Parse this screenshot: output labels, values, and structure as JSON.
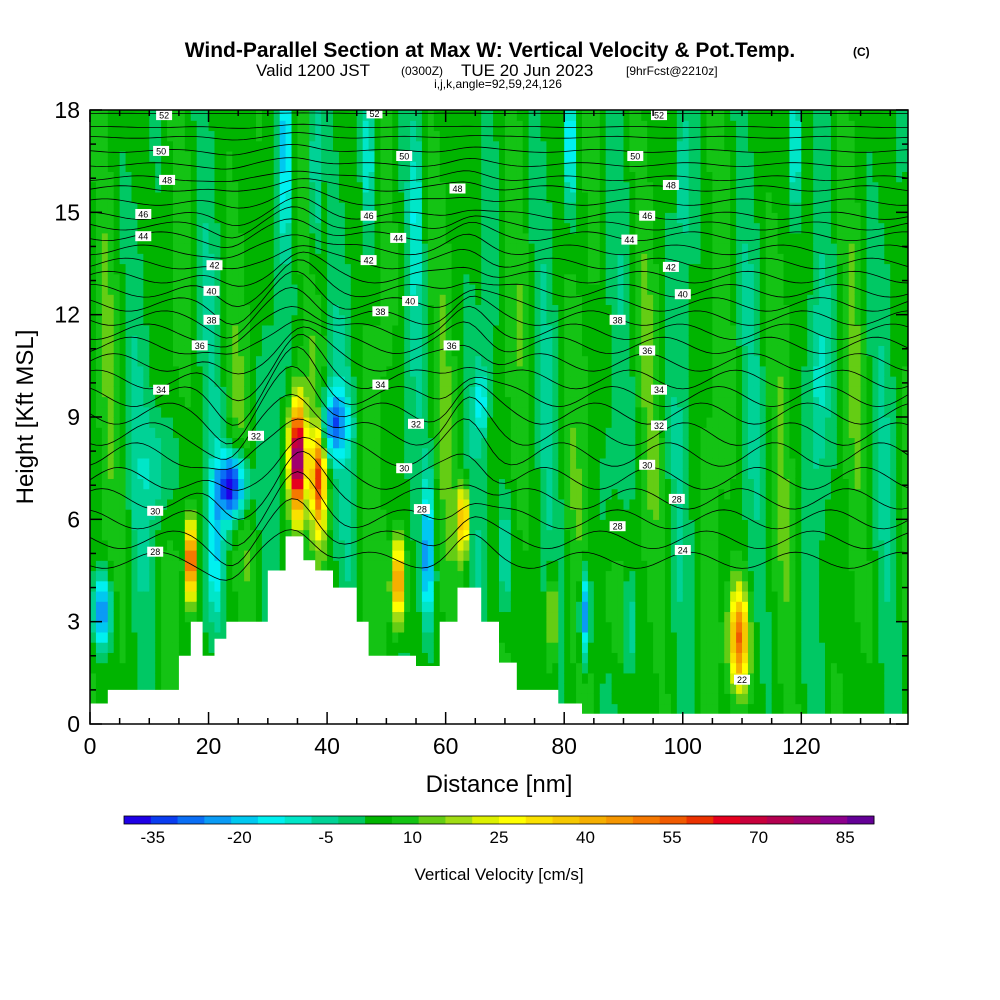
{
  "title": {
    "main": "Wind-Parallel Section at Max W: Vertical Velocity & Pot.Temp.",
    "copyright": "(C)",
    "valid_prefix": "Valid 1200 JST",
    "valid_utc": "(0300Z)",
    "valid_date": "TUE 20 Jun 2023",
    "forecast": "[9hrFcst@2210z]",
    "indices": "i,j,k,angle=92,59,24,126"
  },
  "chart_data": {
    "type": "heatmap",
    "xlabel": "Distance [nm]",
    "ylabel": "Height [Kft MSL]",
    "xlim": [
      0,
      138
    ],
    "ylim": [
      0,
      18
    ],
    "xticks": [
      0,
      20,
      40,
      60,
      80,
      100,
      120
    ],
    "yticks": [
      0,
      3,
      6,
      9,
      12,
      15,
      18
    ],
    "colorbar": {
      "label": "Vertical Velocity [cm/s]",
      "range": [
        -40,
        90
      ],
      "ticks": [
        -35,
        -20,
        -5,
        10,
        25,
        40,
        55,
        70,
        85
      ],
      "colors": [
        "#1e00e6",
        "#0a3cf0",
        "#0a6ef5",
        "#0a9bf5",
        "#00c8f0",
        "#00f0f0",
        "#00e6c8",
        "#00d296",
        "#00c864",
        "#00b400",
        "#14c314",
        "#64cd14",
        "#a0dc14",
        "#dcf000",
        "#ffff00",
        "#fae100",
        "#f5c800",
        "#f5af00",
        "#f59600",
        "#f57800",
        "#f05a00",
        "#eb3200",
        "#e6001e",
        "#c8003c",
        "#b40050",
        "#a0006e",
        "#8c008c",
        "#640096"
      ]
    },
    "contour_field": "Potential Temperature (C)",
    "contour_labels": [
      {
        "x": 12.5,
        "y": 17.85,
        "v": "52"
      },
      {
        "x": 48,
        "y": 17.9,
        "v": "52"
      },
      {
        "x": 96,
        "y": 17.85,
        "v": "52"
      },
      {
        "x": 12,
        "y": 16.8,
        "v": "50"
      },
      {
        "x": 53,
        "y": 16.65,
        "v": "50"
      },
      {
        "x": 92,
        "y": 16.65,
        "v": "50"
      },
      {
        "x": 13,
        "y": 15.95,
        "v": "48"
      },
      {
        "x": 62,
        "y": 15.7,
        "v": "48"
      },
      {
        "x": 98,
        "y": 15.8,
        "v": "48"
      },
      {
        "x": 9,
        "y": 14.95,
        "v": "46"
      },
      {
        "x": 47,
        "y": 14.9,
        "v": "46"
      },
      {
        "x": 94,
        "y": 14.9,
        "v": "46"
      },
      {
        "x": 9,
        "y": 14.3,
        "v": "44"
      },
      {
        "x": 52,
        "y": 14.25,
        "v": "44"
      },
      {
        "x": 91,
        "y": 14.2,
        "v": "44"
      },
      {
        "x": 21,
        "y": 13.45,
        "v": "42"
      },
      {
        "x": 47,
        "y": 13.6,
        "v": "42"
      },
      {
        "x": 98,
        "y": 13.4,
        "v": "42"
      },
      {
        "x": 20.5,
        "y": 12.7,
        "v": "40"
      },
      {
        "x": 54,
        "y": 12.4,
        "v": "40"
      },
      {
        "x": 100,
        "y": 12.6,
        "v": "40"
      },
      {
        "x": 20.5,
        "y": 11.85,
        "v": "38"
      },
      {
        "x": 49,
        "y": 12.1,
        "v": "38"
      },
      {
        "x": 89,
        "y": 11.85,
        "v": "38"
      },
      {
        "x": 18.5,
        "y": 11.1,
        "v": "36"
      },
      {
        "x": 61,
        "y": 11.1,
        "v": "36"
      },
      {
        "x": 94,
        "y": 10.95,
        "v": "36"
      },
      {
        "x": 12,
        "y": 9.8,
        "v": "34"
      },
      {
        "x": 49,
        "y": 9.95,
        "v": "34"
      },
      {
        "x": 96,
        "y": 9.8,
        "v": "34"
      },
      {
        "x": 28,
        "y": 8.45,
        "v": "32"
      },
      {
        "x": 55,
        "y": 8.8,
        "v": "32"
      },
      {
        "x": 96,
        "y": 8.75,
        "v": "32"
      },
      {
        "x": 53,
        "y": 7.5,
        "v": "30"
      },
      {
        "x": 11,
        "y": 6.25,
        "v": "30"
      },
      {
        "x": 94,
        "y": 7.6,
        "v": "30"
      },
      {
        "x": 56,
        "y": 6.3,
        "v": "28"
      },
      {
        "x": 99,
        "y": 6.6,
        "v": "28"
      },
      {
        "x": 89,
        "y": 5.8,
        "v": "28"
      },
      {
        "x": 11,
        "y": 5.05,
        "v": "28"
      },
      {
        "x": 100,
        "y": 5.1,
        "v": "24"
      },
      {
        "x": 110,
        "y": 1.3,
        "v": "22"
      }
    ]
  }
}
